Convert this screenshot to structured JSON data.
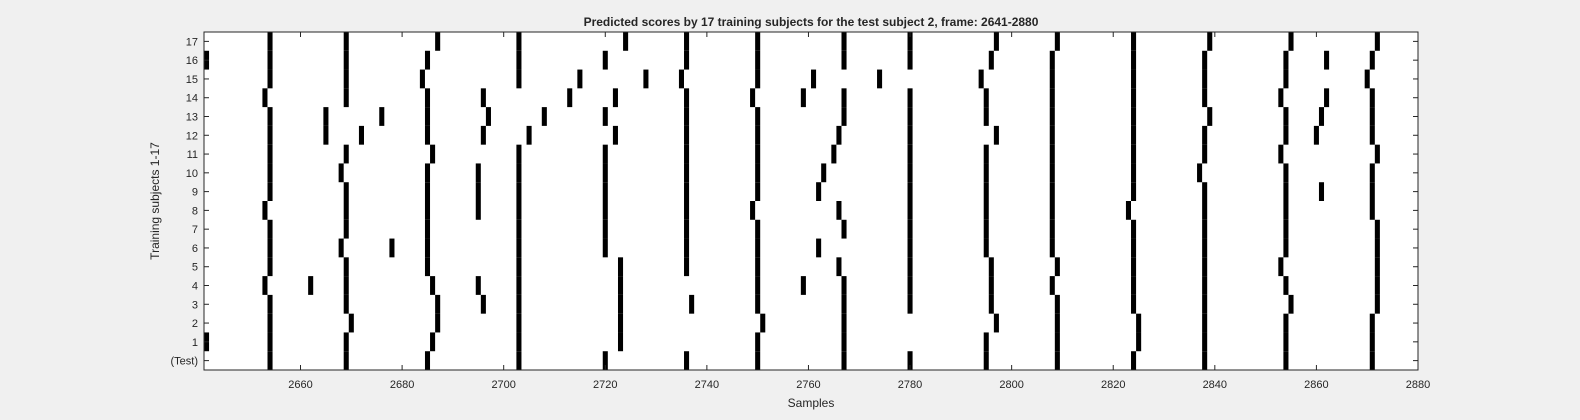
{
  "chart_data": {
    "type": "heatmap",
    "title": "Predicted scores by 17 training subjects for the test subject 2, frame: 2641-2880",
    "xlabel": "Samples",
    "ylabel": "Training subjects 1-17",
    "xlim": [
      2641,
      2880
    ],
    "xticks": [
      2660,
      2680,
      2700,
      2720,
      2740,
      2760,
      2780,
      2800,
      2820,
      2840,
      2860,
      2880
    ],
    "yticks": [
      "(Test)",
      "1",
      "2",
      "3",
      "4",
      "5",
      "6",
      "7",
      "8",
      "9",
      "10",
      "11",
      "12",
      "13",
      "14",
      "15",
      "16",
      "17"
    ],
    "grid": false,
    "colors": {
      "mark": "#000000",
      "background": "#ffffff",
      "figure": "#f0f0f0"
    },
    "rows": [
      {
        "label": "(Test)",
        "x": [
          2654,
          2669,
          2685,
          2703,
          2720,
          2736,
          2750,
          2767,
          2780,
          2795,
          2809,
          2824,
          2838,
          2854,
          2871
        ]
      },
      {
        "label": "1",
        "x": [
          2641,
          2654,
          2669,
          2686,
          2703,
          2723,
          2750,
          2767,
          2795,
          2809,
          2825,
          2838,
          2854,
          2871
        ]
      },
      {
        "label": "2",
        "x": [
          2654,
          2670,
          2687,
          2703,
          2723,
          2751,
          2767,
          2797,
          2809,
          2825,
          2838,
          2854,
          2871
        ]
      },
      {
        "label": "3",
        "x": [
          2654,
          2669,
          2687,
          2696,
          2703,
          2723,
          2737,
          2750,
          2767,
          2780,
          2796,
          2809,
          2824,
          2838,
          2855,
          2872
        ]
      },
      {
        "label": "4",
        "x": [
          2653,
          2662,
          2669,
          2686,
          2695,
          2703,
          2723,
          2750,
          2759,
          2767,
          2780,
          2796,
          2808,
          2824,
          2838,
          2854,
          2872
        ]
      },
      {
        "label": "5",
        "x": [
          2654,
          2669,
          2685,
          2703,
          2723,
          2736,
          2750,
          2766,
          2780,
          2796,
          2809,
          2824,
          2838,
          2853,
          2872
        ]
      },
      {
        "label": "6",
        "x": [
          2654,
          2668,
          2678,
          2685,
          2703,
          2720,
          2736,
          2750,
          2762,
          2780,
          2795,
          2808,
          2824,
          2838,
          2854,
          2872
        ]
      },
      {
        "label": "7",
        "x": [
          2654,
          2669,
          2685,
          2703,
          2720,
          2736,
          2750,
          2767,
          2780,
          2795,
          2808,
          2824,
          2838,
          2854,
          2872
        ]
      },
      {
        "label": "8",
        "x": [
          2653,
          2669,
          2685,
          2695,
          2703,
          2720,
          2736,
          2749,
          2766,
          2780,
          2795,
          2808,
          2823,
          2838,
          2854,
          2871
        ]
      },
      {
        "label": "9",
        "x": [
          2654,
          2669,
          2685,
          2695,
          2703,
          2720,
          2736,
          2750,
          2762,
          2780,
          2795,
          2808,
          2824,
          2838,
          2854,
          2861,
          2871
        ]
      },
      {
        "label": "10",
        "x": [
          2654,
          2668,
          2685,
          2695,
          2703,
          2720,
          2736,
          2750,
          2763,
          2780,
          2795,
          2808,
          2824,
          2837,
          2854,
          2871
        ]
      },
      {
        "label": "11",
        "x": [
          2654,
          2669,
          2686,
          2703,
          2720,
          2736,
          2750,
          2765,
          2780,
          2795,
          2808,
          2824,
          2838,
          2853,
          2872
        ]
      },
      {
        "label": "12",
        "x": [
          2654,
          2665,
          2672,
          2685,
          2696,
          2705,
          2722,
          2736,
          2750,
          2766,
          2780,
          2797,
          2808,
          2824,
          2838,
          2854,
          2860,
          2871
        ]
      },
      {
        "label": "13",
        "x": [
          2654,
          2665,
          2676,
          2685,
          2697,
          2708,
          2720,
          2736,
          2750,
          2767,
          2780,
          2795,
          2808,
          2824,
          2839,
          2854,
          2861,
          2871
        ]
      },
      {
        "label": "14",
        "x": [
          2653,
          2669,
          2685,
          2696,
          2713,
          2722,
          2736,
          2749,
          2759,
          2767,
          2780,
          2795,
          2808,
          2824,
          2838,
          2853,
          2862,
          2871
        ]
      },
      {
        "label": "15",
        "x": [
          2654,
          2669,
          2684,
          2703,
          2715,
          2728,
          2735,
          2750,
          2761,
          2774,
          2794,
          2808,
          2824,
          2838,
          2854,
          2870
        ]
      },
      {
        "label": "16",
        "x": [
          2641,
          2654,
          2669,
          2685,
          2703,
          2720,
          2736,
          2750,
          2767,
          2780,
          2796,
          2808,
          2824,
          2838,
          2854,
          2862,
          2871
        ]
      },
      {
        "label": "17",
        "x": [
          2654,
          2669,
          2687,
          2703,
          2724,
          2736,
          2750,
          2767,
          2780,
          2797,
          2809,
          2824,
          2839,
          2855,
          2872
        ]
      }
    ]
  }
}
